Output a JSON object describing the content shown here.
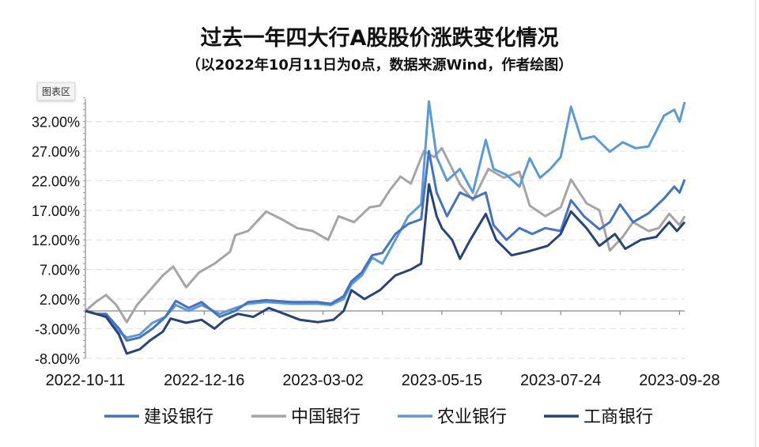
{
  "chart_data": {
    "type": "line",
    "title": "过去一年四大行A股股价涨跌变化情况",
    "subtitle": "（以2022年10月11日为0点，数据来源Wind，作者绘图）",
    "chart_area_label": "图表区",
    "xlabel": "",
    "ylabel": "",
    "x_unit": "trading-day index from 2022-10-11",
    "x_range": [
      0,
      232
    ],
    "x_ticks": [
      {
        "x": 0,
        "label": "2022-10-11"
      },
      {
        "x": 46,
        "label": "2022-12-16"
      },
      {
        "x": 92,
        "label": "2023-03-02"
      },
      {
        "x": 138,
        "label": "2023-05-15"
      },
      {
        "x": 184,
        "label": "2023-07-24"
      },
      {
        "x": 230,
        "label": "2023-09-28"
      }
    ],
    "ylim": [
      -8,
      36
    ],
    "y_ticks": [
      {
        "v": 32,
        "label": "32.00%"
      },
      {
        "v": 27,
        "label": "27.00%"
      },
      {
        "v": 22,
        "label": "22.00%"
      },
      {
        "v": 17,
        "label": "17.00%"
      },
      {
        "v": 12,
        "label": "12.00%"
      },
      {
        "v": 7,
        "label": "7.00%"
      },
      {
        "v": 2,
        "label": "2.00%"
      },
      {
        "v": -3,
        "label": "-3.00%"
      },
      {
        "v": -8,
        "label": "-8.00%"
      }
    ],
    "grid": "horizontal-dashed",
    "legend_position": "bottom",
    "series": [
      {
        "name": "建设银行",
        "color": "#4472C4",
        "points": [
          [
            0,
            0
          ],
          [
            4,
            -0.5
          ],
          [
            8,
            -0.5
          ],
          [
            13,
            -3
          ],
          [
            16,
            -5
          ],
          [
            21,
            -4.5
          ],
          [
            26,
            -3
          ],
          [
            31,
            -1
          ],
          [
            35,
            1.7
          ],
          [
            40,
            0.5
          ],
          [
            45,
            1.5
          ],
          [
            52,
            -1
          ],
          [
            58,
            0
          ],
          [
            63,
            1.5
          ],
          [
            70,
            1.8
          ],
          [
            80,
            1.5
          ],
          [
            90,
            1.5
          ],
          [
            95,
            1.2
          ],
          [
            100,
            2.5
          ],
          [
            103,
            5
          ],
          [
            107,
            6.5
          ],
          [
            111,
            9.4
          ],
          [
            115,
            9.8
          ],
          [
            120,
            13
          ],
          [
            125,
            14.7
          ],
          [
            130,
            15.5
          ],
          [
            133,
            27
          ],
          [
            136,
            20
          ],
          [
            140,
            16
          ],
          [
            145,
            20
          ],
          [
            150,
            19
          ],
          [
            155,
            20
          ],
          [
            158,
            14.5
          ],
          [
            163,
            12
          ],
          [
            168,
            14
          ],
          [
            173,
            13
          ],
          [
            178,
            14
          ],
          [
            184,
            13.5
          ],
          [
            188,
            18.7
          ],
          [
            193,
            16
          ],
          [
            199,
            13.8
          ],
          [
            203,
            15
          ],
          [
            207,
            18
          ],
          [
            212,
            15
          ],
          [
            218,
            16.5
          ],
          [
            224,
            19
          ],
          [
            228,
            21
          ],
          [
            230,
            20
          ],
          [
            232,
            22.2
          ]
        ]
      },
      {
        "name": "中国银行",
        "color": "#A5A5A5",
        "points": [
          [
            0,
            0
          ],
          [
            4,
            1.5
          ],
          [
            8,
            2.7
          ],
          [
            12,
            1
          ],
          [
            16,
            -1.9
          ],
          [
            20,
            1
          ],
          [
            25,
            3.5
          ],
          [
            30,
            6
          ],
          [
            34,
            7.5
          ],
          [
            39,
            4
          ],
          [
            44,
            6.5
          ],
          [
            50,
            8
          ],
          [
            56,
            10
          ],
          [
            58,
            12.8
          ],
          [
            63,
            13.5
          ],
          [
            70,
            16.8
          ],
          [
            76,
            15.5
          ],
          [
            82,
            14
          ],
          [
            88,
            13.5
          ],
          [
            94,
            12
          ],
          [
            98,
            16
          ],
          [
            104,
            15
          ],
          [
            110,
            17.5
          ],
          [
            114,
            17.8
          ],
          [
            118,
            20.5
          ],
          [
            122,
            22.7
          ],
          [
            126,
            21.5
          ],
          [
            131,
            27
          ],
          [
            135,
            26
          ],
          [
            138,
            27.5
          ],
          [
            145,
            21.4
          ],
          [
            150,
            18.7
          ],
          [
            156,
            24
          ],
          [
            162,
            22.5
          ],
          [
            168,
            23.5
          ],
          [
            172,
            17.8
          ],
          [
            178,
            16
          ],
          [
            184,
            17.5
          ],
          [
            188,
            22.2
          ],
          [
            194,
            18.2
          ],
          [
            199,
            17
          ],
          [
            203,
            10.2
          ],
          [
            208,
            12.5
          ],
          [
            212,
            15
          ],
          [
            218,
            13.5
          ],
          [
            222,
            14
          ],
          [
            226,
            16.4
          ],
          [
            230,
            14.5
          ],
          [
            232,
            16
          ]
        ]
      },
      {
        "name": "农业银行",
        "color": "#5B9BD5",
        "points": [
          [
            0,
            0
          ],
          [
            4,
            -0.5
          ],
          [
            8,
            -0.8
          ],
          [
            13,
            -3.5
          ],
          [
            16,
            -4.5
          ],
          [
            21,
            -4
          ],
          [
            26,
            -2
          ],
          [
            31,
            -1
          ],
          [
            35,
            1
          ],
          [
            40,
            0
          ],
          [
            45,
            1
          ],
          [
            52,
            -0.5
          ],
          [
            58,
            0.5
          ],
          [
            63,
            1.2
          ],
          [
            70,
            1.5
          ],
          [
            80,
            1.2
          ],
          [
            90,
            1.2
          ],
          [
            95,
            1
          ],
          [
            100,
            2
          ],
          [
            103,
            4.5
          ],
          [
            107,
            6
          ],
          [
            111,
            9
          ],
          [
            115,
            8
          ],
          [
            120,
            12
          ],
          [
            125,
            16
          ],
          [
            130,
            18
          ],
          [
            133,
            35.4
          ],
          [
            136,
            26
          ],
          [
            140,
            22
          ],
          [
            145,
            24
          ],
          [
            150,
            20
          ],
          [
            155,
            28.9
          ],
          [
            158,
            24
          ],
          [
            163,
            23
          ],
          [
            168,
            21
          ],
          [
            172,
            25.8
          ],
          [
            176,
            22.5
          ],
          [
            180,
            24
          ],
          [
            184,
            26
          ],
          [
            188,
            34.5
          ],
          [
            192,
            29
          ],
          [
            197,
            29.5
          ],
          [
            203,
            26.9
          ],
          [
            208,
            28.5
          ],
          [
            213,
            27.5
          ],
          [
            218,
            27.8
          ],
          [
            224,
            33
          ],
          [
            228,
            34
          ],
          [
            230,
            32
          ],
          [
            232,
            35.3
          ]
        ]
      },
      {
        "name": "工商银行",
        "color": "#264478",
        "points": [
          [
            0,
            0
          ],
          [
            4,
            -0.5
          ],
          [
            8,
            -1
          ],
          [
            13,
            -4
          ],
          [
            16,
            -7.2
          ],
          [
            21,
            -6.5
          ],
          [
            25,
            -5
          ],
          [
            30,
            -3.5
          ],
          [
            33,
            -1.3
          ],
          [
            39,
            -2
          ],
          [
            45,
            -1.5
          ],
          [
            50,
            -3
          ],
          [
            54,
            -1.5
          ],
          [
            59,
            -0.5
          ],
          [
            65,
            -1
          ],
          [
            71,
            0.5
          ],
          [
            77,
            -0.5
          ],
          [
            83,
            -1.5
          ],
          [
            90,
            -1.9
          ],
          [
            96,
            -1.5
          ],
          [
            100,
            0
          ],
          [
            103,
            3.5
          ],
          [
            108,
            2
          ],
          [
            114,
            3.5
          ],
          [
            120,
            6
          ],
          [
            126,
            7
          ],
          [
            130,
            8
          ],
          [
            133,
            21.4
          ],
          [
            136,
            16
          ],
          [
            138,
            14
          ],
          [
            142,
            12
          ],
          [
            145,
            8.8
          ],
          [
            149,
            12
          ],
          [
            155,
            16.4
          ],
          [
            159,
            12
          ],
          [
            165,
            9.4
          ],
          [
            171,
            10
          ],
          [
            179,
            11
          ],
          [
            184,
            13
          ],
          [
            188,
            16.8
          ],
          [
            194,
            14
          ],
          [
            199,
            11
          ],
          [
            205,
            13
          ],
          [
            209,
            10.5
          ],
          [
            215,
            12
          ],
          [
            221,
            12.5
          ],
          [
            226,
            15
          ],
          [
            229,
            13.5
          ],
          [
            232,
            15
          ]
        ]
      }
    ]
  }
}
